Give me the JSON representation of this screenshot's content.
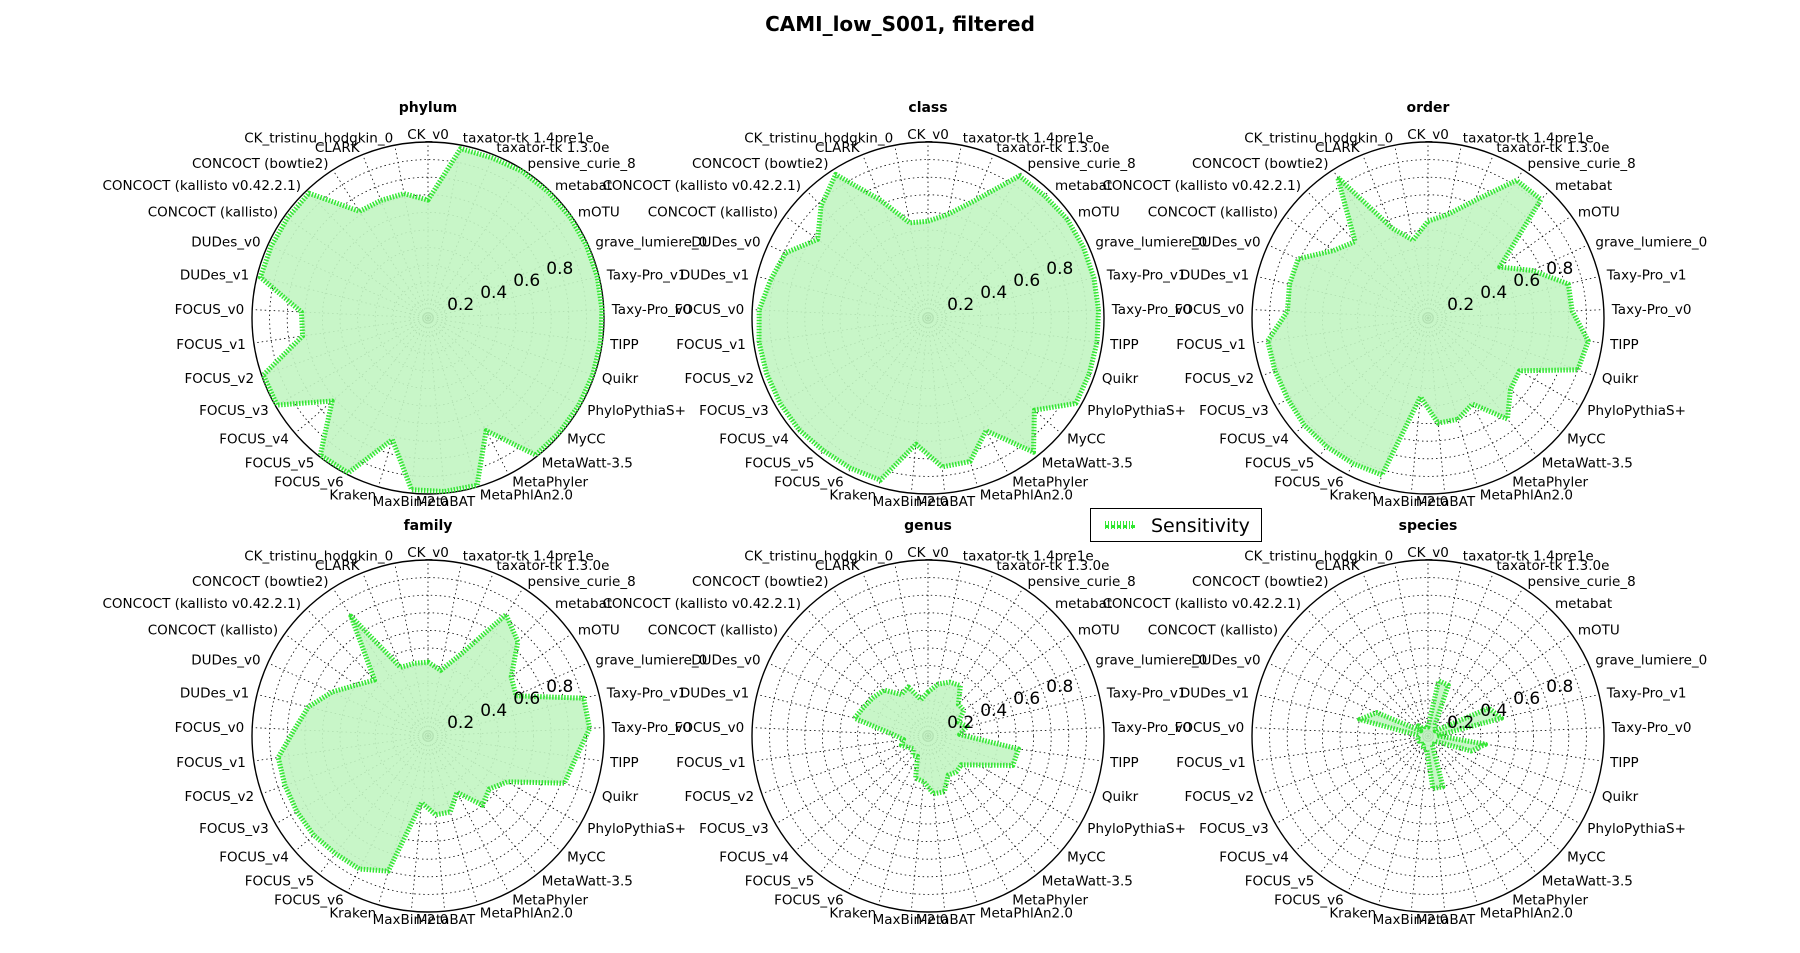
{
  "title": "CAMI_low_S001, filtered",
  "legend": {
    "label": "Sensitivity"
  },
  "colors": {
    "fill": "#c2f5c2",
    "line": "#33e633",
    "grid": "#000000"
  },
  "chart_data": {
    "type": "radar",
    "radial_ticks": [
      "0.2",
      "0.4",
      "0.6",
      "0.8"
    ],
    "rlim": [
      0,
      1
    ],
    "grid": true,
    "legend_placement": "center-right",
    "axes": [
      "CK_v0",
      "taxator-tk 1.4pre1e",
      "taxator-tk 1.3.0e",
      "pensive_curie_8",
      "metabat",
      "mOTU",
      "grave_lumiere_0",
      "Taxy-Pro_v1",
      "Taxy-Pro_v0",
      "TIPP",
      "Quikr",
      "PhyloPythiaS+",
      "MyCC",
      "MetaWatt-3.5",
      "MetaPhyler",
      "MetaPhlAn2.0",
      "MetaBAT",
      "MaxBin-2.0",
      "Kraken",
      "FOCUS_v6",
      "FOCUS_v5",
      "FOCUS_v4",
      "FOCUS_v3",
      "FOCUS_v2",
      "FOCUS_v1",
      "FOCUS_v0",
      "DUDes_v1",
      "DUDes_v0",
      "CONCOCT (kallisto)",
      "CONCOCT (kallisto v0.42.2.1)",
      "CONCOCT (bowtie2)",
      "CLARK",
      "CK_tristinu_hodgkin_0"
    ],
    "charts": [
      {
        "rank": "phylum",
        "series": [
          {
            "name": "Sensitivity",
            "values": [
              0.67,
              0.98,
              0.98,
              0.99,
              0.99,
              0.99,
              0.99,
              0.99,
              0.99,
              0.99,
              0.99,
              0.99,
              0.99,
              0.99,
              0.72,
              0.99,
              0.99,
              0.98,
              0.72,
              0.99,
              0.99,
              0.72,
              0.99,
              0.99,
              0.72,
              0.72,
              0.98,
              0.98,
              0.98,
              0.98,
              0.72,
              0.72,
              0.72
            ]
          }
        ]
      },
      {
        "rank": "class",
        "series": [
          {
            "name": "Sensitivity",
            "values": [
              0.55,
              0.6,
              0.72,
              0.96,
              0.96,
              0.97,
              0.97,
              0.97,
              0.97,
              0.97,
              0.97,
              0.97,
              0.8,
              0.97,
              0.72,
              0.85,
              0.85,
              0.72,
              0.96,
              0.96,
              0.96,
              0.97,
              0.97,
              0.97,
              0.97,
              0.96,
              0.92,
              0.89,
              0.77,
              0.88,
              0.97,
              0.72,
              0.55
            ]
          }
        ]
      },
      {
        "rank": "order",
        "series": [
          {
            "name": "Sensitivity",
            "values": [
              0.55,
              0.6,
              0.72,
              0.93,
              0.93,
              0.5,
              0.65,
              0.82,
              0.82,
              0.92,
              0.9,
              0.6,
              0.62,
              0.73,
              0.55,
              0.6,
              0.6,
              0.45,
              0.93,
              0.93,
              0.93,
              0.93,
              0.92,
              0.92,
              0.92,
              0.8,
              0.81,
              0.81,
              0.66,
              0.6,
              0.95,
              0.55,
              0.45
            ]
          }
        ]
      },
      {
        "rank": "family",
        "series": [
          {
            "name": "Sensitivity",
            "values": [
              0.42,
              0.38,
              0.5,
              0.82,
              0.74,
              0.58,
              0.55,
              0.91,
              0.92,
              0.85,
              0.82,
              0.52,
              0.46,
              0.5,
              0.36,
              0.45,
              0.45,
              0.38,
              0.8,
              0.85,
              0.85,
              0.86,
              0.86,
              0.86,
              0.86,
              0.76,
              0.7,
              0.6,
              0.5,
              0.44,
              0.81,
              0.42,
              0.42
            ]
          }
        ]
      },
      {
        "rank": "genus",
        "series": [
          {
            "name": "Sensitivity",
            "values": [
              0.25,
              0.3,
              0.33,
              0.34,
              0.25,
              0.25,
              0.19,
              0.23,
              0.18,
              0.52,
              0.51,
              0.33,
              0.25,
              0.26,
              0.25,
              0.33,
              0.33,
              0.26,
              0.25,
              0.13,
              0.14,
              0.11,
              0.13,
              0.16,
              0.14,
              0.2,
              0.43,
              0.4,
              0.38,
              0.36,
              0.28,
              0.3,
              0.21
            ]
          }
        ]
      },
      {
        "rank": "species",
        "series": [
          {
            "name": "Sensitivity",
            "values": [
              0.05,
              0.32,
              0.31,
              0.07,
              0.06,
              0.05,
              0.38,
              0.43,
              0.05,
              0.33,
              0.26,
              0.07,
              0.05,
              0.06,
              0.05,
              0.3,
              0.3,
              0.08,
              0.08,
              0.06,
              0.06,
              0.05,
              0.06,
              0.06,
              0.06,
              0.05,
              0.4,
              0.32,
              0.05,
              0.08,
              0.05,
              0.06,
              0.05
            ]
          }
        ]
      }
    ]
  }
}
